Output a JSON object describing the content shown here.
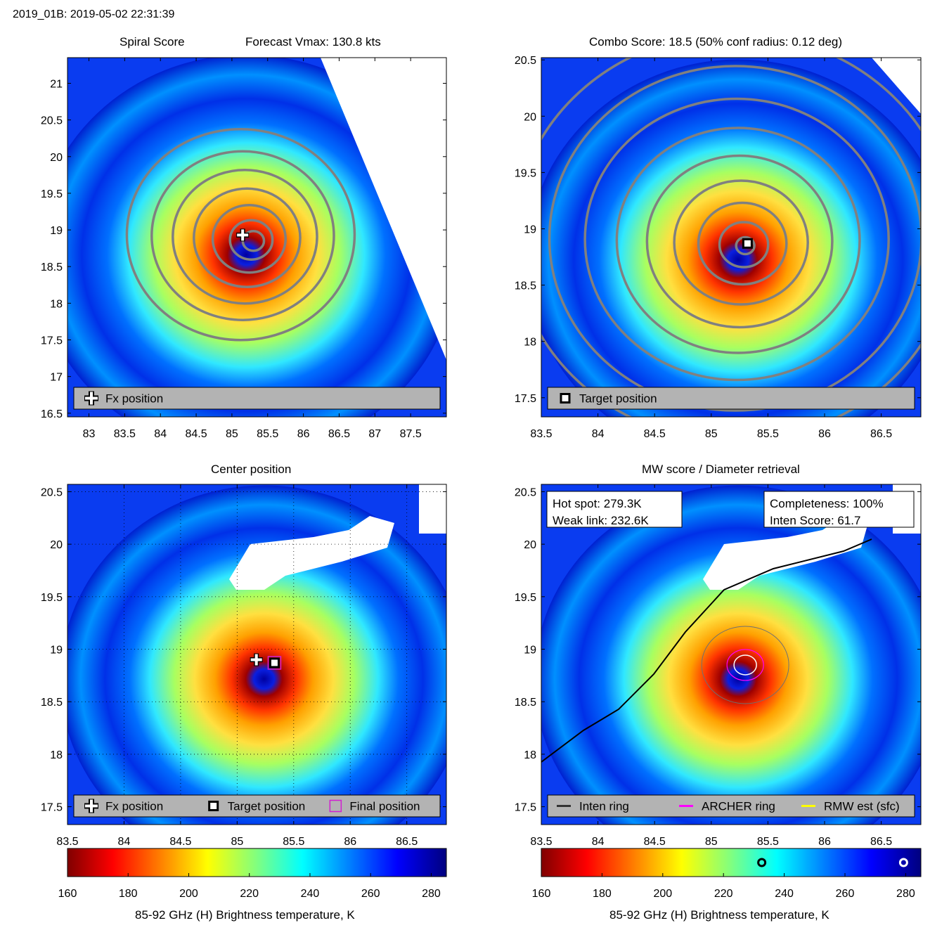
{
  "header": {
    "title": "2019_01B: 2019-05-02 22:31:39"
  },
  "panels": {
    "spiral": {
      "title_left": "Spiral Score",
      "title_right": "Forecast Vmax: 130.8 kts",
      "legend": [
        "Fx position"
      ]
    },
    "combo": {
      "title": "Combo Score: 18.5  (50% conf radius: 0.12 deg)",
      "legend": [
        "Target position"
      ]
    },
    "center": {
      "title": "Center position",
      "legend": [
        "Fx position",
        "Target position",
        "Final position"
      ]
    },
    "mw": {
      "title": "MW score / Diameter retrieval",
      "box_left": [
        "Hot spot: 279.3K",
        "Weak link: 232.6K"
      ],
      "box_right": [
        "Completeness: 100%",
        "Inten Score: 61.7"
      ],
      "legend": [
        "Inten ring",
        "ARCHER ring",
        "RMW est (sfc)"
      ]
    }
  },
  "colorbar": {
    "label": "85-92 GHz (H) Brightness temperature, K",
    "ticks": [
      160,
      180,
      200,
      220,
      240,
      260,
      280
    ],
    "range": [
      160,
      285
    ],
    "markers_K": [
      232.6,
      279.3
    ]
  },
  "chart_data": [
    {
      "type": "heatmap",
      "title": "Spiral Score",
      "xlim": [
        82.7,
        88.0
      ],
      "ylim": [
        16.45,
        21.35
      ],
      "xticks": [
        83,
        83.5,
        84,
        84.5,
        85,
        85.5,
        86,
        86.5,
        87,
        87.5
      ],
      "yticks": [
        16.5,
        17,
        17.5,
        18,
        18.5,
        19,
        19.5,
        20,
        20.5,
        21
      ],
      "grid": false,
      "fx_position": [
        85.15,
        18.93
      ],
      "center": [
        85.3,
        18.85
      ],
      "legend_position": "bottom"
    },
    {
      "type": "heatmap",
      "title": "Combo Score: 18.5  (50% conf radius: 0.12 deg)",
      "xlim": [
        83.5,
        86.85
      ],
      "ylim": [
        17.33,
        20.52
      ],
      "xticks": [
        83.5,
        84,
        84.5,
        85,
        85.5,
        86,
        86.5
      ],
      "yticks": [
        17.5,
        18,
        18.5,
        19,
        19.5,
        20,
        20.5
      ],
      "grid": false,
      "target_position": [
        85.32,
        18.87
      ],
      "center": [
        85.3,
        18.85
      ],
      "legend_position": "bottom"
    },
    {
      "type": "heatmap",
      "title": "Center position",
      "xlim": [
        83.5,
        86.85
      ],
      "ylim": [
        17.33,
        20.57
      ],
      "xticks": [
        83.5,
        84,
        84.5,
        85,
        85.5,
        86,
        86.5
      ],
      "yticks": [
        17.5,
        18,
        18.5,
        19,
        19.5,
        20,
        20.5
      ],
      "grid": true,
      "fx_position": [
        85.17,
        18.9
      ],
      "target_position": [
        85.33,
        18.87
      ],
      "final_position": [
        85.33,
        18.87
      ],
      "center": [
        85.3,
        18.85
      ],
      "legend_position": "bottom"
    },
    {
      "type": "heatmap",
      "title": "MW score / Diameter retrieval",
      "xlim": [
        83.5,
        86.85
      ],
      "ylim": [
        17.33,
        20.57
      ],
      "xticks": [
        83.5,
        84,
        84.5,
        85,
        85.5,
        86,
        86.5
      ],
      "yticks": [
        17.5,
        18,
        18.5,
        19,
        19.5,
        20,
        20.5
      ],
      "grid": false,
      "center": [
        85.3,
        18.85
      ],
      "legend_position": "bottom"
    }
  ]
}
